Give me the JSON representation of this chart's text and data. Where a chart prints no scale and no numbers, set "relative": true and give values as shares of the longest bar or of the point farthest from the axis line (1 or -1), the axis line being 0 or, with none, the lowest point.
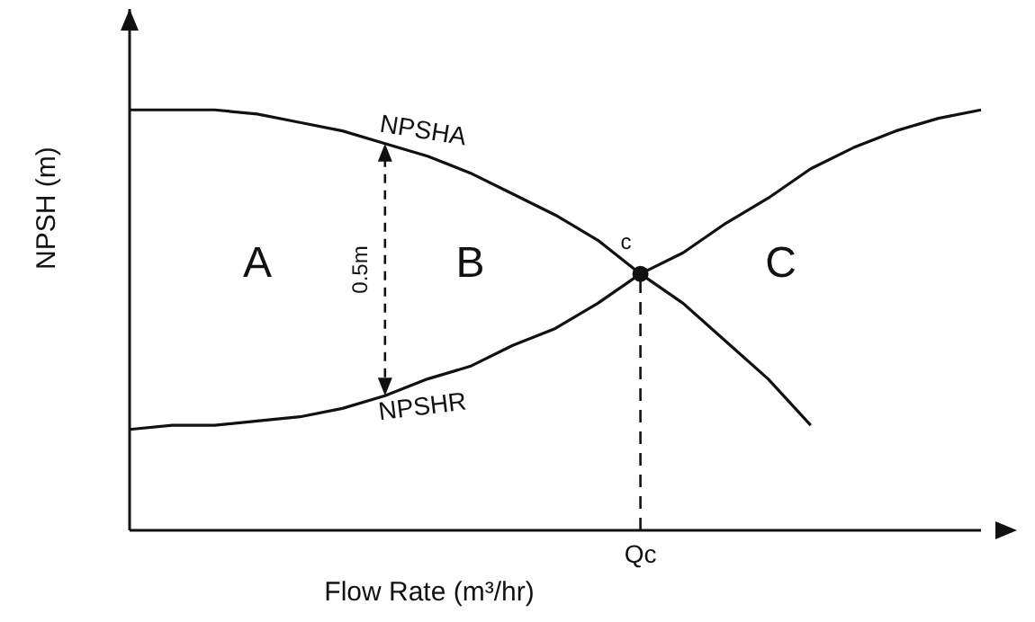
{
  "chart_data": {
    "type": "line",
    "relative": true,
    "xlabel": "Flow Rate (m³/hr)",
    "ylabel": "NPSH (m)",
    "categories": [
      null,
      null,
      null,
      null,
      null,
      null,
      null,
      null,
      null,
      null,
      null,
      null,
      null,
      null,
      null,
      null,
      null,
      null,
      null,
      null,
      null
    ],
    "series": [
      {
        "name": "NPSHA",
        "color": "#111111",
        "values": [
          1,
          1,
          1,
          0.99,
          0.97,
          0.95,
          0.92,
          0.89,
          0.85,
          0.8,
          0.75,
          0.69,
          0.61,
          0.54,
          0.45,
          0.36,
          0.25,
          null,
          null,
          null,
          null
        ]
      },
      {
        "name": "NPSHR",
        "color": "#111111",
        "values": [
          0.24,
          0.25,
          0.25,
          0.26,
          0.27,
          0.29,
          0.32,
          0.36,
          0.39,
          0.44,
          0.48,
          0.54,
          0.61,
          0.66,
          0.73,
          0.79,
          0.86,
          0.91,
          0.95,
          0.98,
          1
        ]
      }
    ],
    "marker": "none",
    "line_style": "solid",
    "ref_lines": [
      {
        "axis": "x",
        "label": "Qc",
        "line_style": "dashed",
        "color": "#111111"
      }
    ],
    "annotations": [
      "A",
      "B",
      "C",
      "0.5m",
      "c"
    ]
  }
}
